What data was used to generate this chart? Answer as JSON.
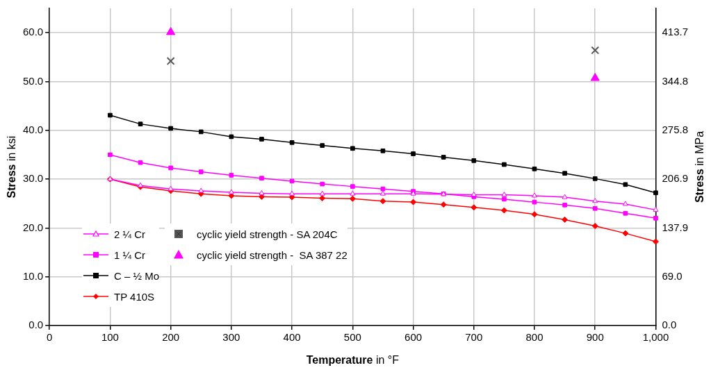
{
  "chart_data": {
    "type": "line",
    "xlabel": "Temperature in °F",
    "ylabel": "Stress in ksi",
    "y2label": "Stress in MPa",
    "x": [
      100,
      150,
      200,
      250,
      300,
      350,
      400,
      450,
      500,
      550,
      600,
      650,
      700,
      750,
      800,
      850,
      900,
      950,
      1000
    ],
    "xlim": [
      0,
      1000
    ],
    "xticks": [
      0,
      100,
      200,
      300,
      400,
      500,
      600,
      700,
      800,
      900,
      {
        "value": 1000,
        "label": "1,000"
      }
    ],
    "ylim": [
      0,
      65
    ],
    "yticks": [
      {
        "value": 0,
        "label": "0.0"
      },
      {
        "value": 10,
        "label": "10.0"
      },
      {
        "value": 20,
        "label": "20.0"
      },
      {
        "value": 30,
        "label": "30.0"
      },
      {
        "value": 40,
        "label": "40.0"
      },
      {
        "value": 50,
        "label": "50.0"
      },
      {
        "value": 60,
        "label": "60.0"
      }
    ],
    "y2lim": [
      0,
      448.2
    ],
    "y2ticks": [
      {
        "value": 0,
        "label": "0.0"
      },
      {
        "value": 69,
        "label": "69.0"
      },
      137.9,
      206.9,
      275.8,
      344.8,
      413.7
    ],
    "grid": true,
    "legend": "bottom left",
    "line_style": "solid",
    "series": [
      {
        "name": "2 ¼ Cr",
        "color": "#ff00ff",
        "marker": "triangle",
        "values": [
          30.0,
          28.7,
          28.0,
          27.6,
          27.3,
          27.1,
          27.0,
          27.0,
          27.0,
          27.0,
          27.0,
          26.9,
          26.8,
          26.8,
          26.6,
          26.3,
          25.5,
          24.9,
          23.7
        ]
      },
      {
        "name": "1 ¼ Cr",
        "color": "#ff00ff",
        "marker": "square",
        "values": [
          35.0,
          33.4,
          32.3,
          31.5,
          30.8,
          30.2,
          29.6,
          29.0,
          28.5,
          28.0,
          27.5,
          27.0,
          26.4,
          25.9,
          25.3,
          24.7,
          24.0,
          23.0,
          22.0
        ]
      },
      {
        "name": "C – ½ Mo",
        "color": "#000000",
        "marker": "square",
        "values": [
          43.1,
          41.3,
          40.4,
          39.7,
          38.7,
          38.2,
          37.5,
          36.9,
          36.3,
          35.8,
          35.2,
          34.5,
          33.8,
          33.0,
          32.1,
          31.2,
          30.1,
          28.9,
          27.2
        ]
      },
      {
        "name": "TP 410S",
        "color": "#ff0000",
        "marker": "diamond",
        "values": [
          30.0,
          28.4,
          27.6,
          27.0,
          26.6,
          26.4,
          26.3,
          26.1,
          26.0,
          25.5,
          25.3,
          24.8,
          24.2,
          23.6,
          22.8,
          21.7,
          20.4,
          18.9,
          17.2
        ]
      },
      {
        "name": "cyclic yield strength - SA 204C",
        "type": "scatter",
        "color": "#555555",
        "marker": "cross",
        "values": [
          null,
          null,
          54.2,
          null,
          null,
          null,
          null,
          null,
          null,
          null,
          null,
          null,
          null,
          null,
          null,
          null,
          56.4,
          null,
          null
        ]
      },
      {
        "name": "cyclic yield strength -  SA 387 22",
        "type": "scatter",
        "color": "#ff00ff",
        "marker": "triangle",
        "values": [
          null,
          null,
          60.1,
          null,
          null,
          null,
          null,
          null,
          null,
          null,
          null,
          null,
          null,
          null,
          null,
          null,
          50.7,
          null,
          null
        ]
      }
    ]
  }
}
